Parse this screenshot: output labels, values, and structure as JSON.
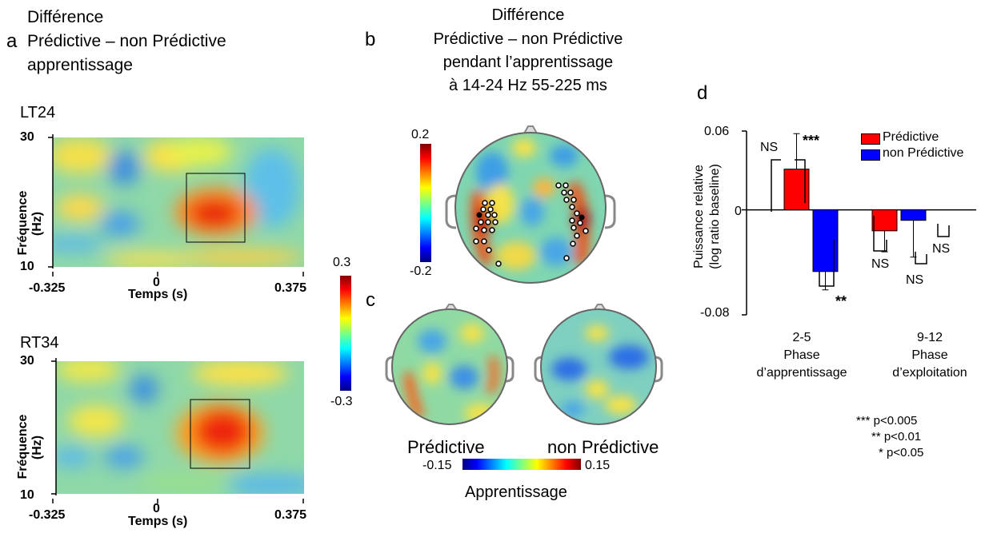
{
  "panel_a": {
    "letter": "a",
    "title": [
      "Différence",
      "Prédictive – non Prédictive",
      "apprentissage"
    ],
    "plots": [
      {
        "name": "LT24",
        "ylabel": [
          "Fréquence",
          "(Hz)"
        ],
        "yticks": [
          "30",
          "10"
        ],
        "xticks": [
          "-0.325",
          "0",
          "0.375"
        ],
        "xlabel": "Temps (s)"
      },
      {
        "name": "RT34",
        "ylabel": [
          "Fréquence",
          "(Hz)"
        ],
        "yticks": [
          "30",
          "10"
        ],
        "xticks": [
          "-0.325",
          "0",
          "0.375"
        ],
        "xlabel": "Temps (s)"
      }
    ],
    "colorbar": {
      "max": "0.3",
      "min": "-0.3"
    }
  },
  "panel_b": {
    "letter": "b",
    "title": [
      "Différence",
      "Prédictive – non Prédictive",
      "pendant l’apprentissage",
      "à 14-24 Hz 55-225 ms"
    ],
    "colorbar": {
      "max": "0.2",
      "min": "-0.2"
    }
  },
  "panel_c": {
    "letter": "c",
    "labels": [
      "Prédictive",
      "non Prédictive"
    ],
    "colorbar": {
      "min": "-0.15",
      "max": "0.15"
    },
    "caption": "Apprentissage"
  },
  "panel_d": {
    "letter": "d",
    "ylabel": [
      "Puissance relative",
      "(log ratio baseline)"
    ],
    "yticks": [
      "0.06",
      "0",
      "-0.08"
    ],
    "significance": [
      "NS",
      "***",
      "**",
      "NS",
      "NS",
      "NS"
    ],
    "groups": [
      [
        "2-5",
        "Phase",
        "d’apprentissage"
      ],
      [
        "9-12",
        "Phase",
        "d’exploitation"
      ]
    ],
    "legend_note": [
      "*** p<0.005",
      "** p<0.01",
      "* p<0.05"
    ]
  },
  "chart_data": {
    "type": "bar",
    "categories": [
      "2-5 Phase d’apprentissage",
      "9-12 Phase d’exploitation"
    ],
    "series": [
      {
        "name": "Prédictive",
        "color": "#ff0000",
        "values": [
          0.031,
          -0.016
        ],
        "error": [
          0.027,
          0.016
        ]
      },
      {
        "name": "non Prédictive",
        "color": "#0000ff",
        "values": [
          -0.047,
          -0.008
        ],
        "error": [
          0.014,
          0.028
        ]
      }
    ],
    "ylim": [
      -0.08,
      0.06
    ],
    "legend": "top-right"
  }
}
